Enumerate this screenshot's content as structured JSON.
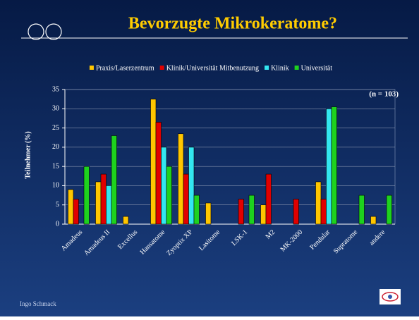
{
  "chart_data": {
    "type": "bar",
    "title": "Bevorzugte Mikrokeratome?",
    "ylabel": "Teilnehmer  (%)",
    "annotation": "(n = 103)",
    "footer": "Ingo Schmack",
    "categories": [
      "Amadeus",
      "Amadeus II",
      "Excellus",
      "Hansatome",
      "Zyoptix XP",
      "Lasitome",
      "LSK-1",
      "M2",
      "MK-2000",
      "Pendular",
      "Supratome",
      "andere"
    ],
    "series": [
      {
        "name": "Praxis/Laserzentrum",
        "color": "#ffc600",
        "values": [
          9,
          11,
          2,
          32.5,
          23.5,
          5.5,
          0,
          5,
          0,
          11,
          0,
          2
        ]
      },
      {
        "name": "Klinik/Universität Mitbenutzung",
        "color": "#e00000",
        "values": [
          6.5,
          13,
          0,
          26.5,
          13,
          0,
          6.5,
          13,
          6.5,
          6.5,
          0,
          0
        ]
      },
      {
        "name": "Klinik",
        "color": "#33e6f0",
        "values": [
          0,
          10,
          0,
          20,
          20,
          0,
          0,
          0,
          0,
          30,
          0,
          0
        ]
      },
      {
        "name": "Universität",
        "color": "#1ed21e",
        "values": [
          15,
          23,
          0,
          15,
          7.5,
          0,
          7.5,
          0,
          0,
          30.5,
          7.5,
          7.5
        ]
      }
    ],
    "ylim": [
      0,
      35
    ],
    "yticks": [
      0,
      5,
      10,
      15,
      20,
      25,
      30,
      35
    ],
    "grid": true
  }
}
